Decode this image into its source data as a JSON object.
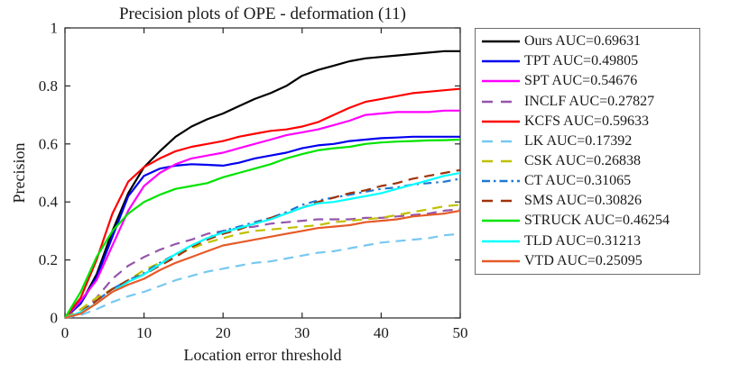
{
  "chart_data": {
    "type": "line",
    "title": "Precision plots of OPE - deformation (11)",
    "xlabel": "Location error threshold",
    "ylabel": "Precision",
    "xlim": [
      0,
      50
    ],
    "ylim": [
      0,
      1
    ],
    "x_ticks": [
      0,
      10,
      20,
      30,
      40,
      50
    ],
    "x_tick_labels": [
      "0",
      "10",
      "20",
      "30",
      "40",
      "50"
    ],
    "y_ticks": [
      0,
      0.2,
      0.4,
      0.6,
      0.8,
      1
    ],
    "y_tick_labels": [
      "0",
      "0.2",
      "0.4",
      "0.6",
      "0.8",
      "1"
    ],
    "grid": false,
    "legend_position": "outside-right",
    "axis_color": "#262626",
    "x": [
      0,
      2,
      4,
      6,
      8,
      10,
      12,
      14,
      16,
      18,
      20,
      22,
      24,
      26,
      28,
      30,
      32,
      34,
      36,
      38,
      40,
      42,
      44,
      46,
      48,
      50
    ],
    "series": [
      {
        "name": "Ours",
        "auc": 0.69631,
        "label": "Ours AUC=0.69631",
        "color": "#000000",
        "style": "solid",
        "values": [
          0,
          0.05,
          0.15,
          0.3,
          0.43,
          0.52,
          0.575,
          0.625,
          0.66,
          0.685,
          0.705,
          0.73,
          0.755,
          0.775,
          0.8,
          0.835,
          0.855,
          0.87,
          0.885,
          0.895,
          0.9,
          0.905,
          0.91,
          0.915,
          0.92,
          0.92
        ]
      },
      {
        "name": "TPT",
        "auc": 0.49805,
        "label": "TPT AUC=0.49805",
        "color": "#0000EE",
        "style": "solid",
        "values": [
          0,
          0.05,
          0.14,
          0.28,
          0.42,
          0.49,
          0.515,
          0.525,
          0.53,
          0.528,
          0.525,
          0.535,
          0.55,
          0.56,
          0.57,
          0.585,
          0.595,
          0.6,
          0.61,
          0.615,
          0.62,
          0.622,
          0.625,
          0.625,
          0.625,
          0.625
        ]
      },
      {
        "name": "SPT",
        "auc": 0.54676,
        "label": "SPT AUC=0.54676",
        "color": "#FF00FF",
        "style": "solid",
        "values": [
          0,
          0.06,
          0.13,
          0.25,
          0.37,
          0.455,
          0.5,
          0.53,
          0.55,
          0.56,
          0.57,
          0.585,
          0.6,
          0.615,
          0.63,
          0.64,
          0.65,
          0.665,
          0.68,
          0.7,
          0.705,
          0.71,
          0.71,
          0.71,
          0.715,
          0.715
        ]
      },
      {
        "name": "INCLF",
        "auc": 0.27827,
        "label": "INCLF AUC=0.27827",
        "color": "#9655AA",
        "style": "dashed",
        "values": [
          0,
          0.02,
          0.07,
          0.135,
          0.18,
          0.21,
          0.235,
          0.255,
          0.27,
          0.29,
          0.3,
          0.31,
          0.315,
          0.325,
          0.33,
          0.335,
          0.34,
          0.34,
          0.34,
          0.345,
          0.345,
          0.35,
          0.355,
          0.36,
          0.37,
          0.375
        ]
      },
      {
        "name": "KCFS",
        "auc": 0.59633,
        "label": "KCFS AUC=0.59633",
        "color": "#FF0000",
        "style": "solid",
        "values": [
          0,
          0.07,
          0.2,
          0.36,
          0.47,
          0.52,
          0.55,
          0.575,
          0.59,
          0.6,
          0.61,
          0.625,
          0.635,
          0.645,
          0.65,
          0.66,
          0.675,
          0.7,
          0.725,
          0.745,
          0.755,
          0.765,
          0.775,
          0.78,
          0.785,
          0.79
        ]
      },
      {
        "name": "LK",
        "auc": 0.17392,
        "label": "LK AUC=0.17392",
        "color": "#77C8F0",
        "style": "dashed",
        "values": [
          0,
          0.01,
          0.03,
          0.055,
          0.075,
          0.09,
          0.11,
          0.13,
          0.145,
          0.16,
          0.17,
          0.18,
          0.19,
          0.195,
          0.205,
          0.215,
          0.225,
          0.23,
          0.24,
          0.25,
          0.26,
          0.265,
          0.27,
          0.275,
          0.285,
          0.29
        ]
      },
      {
        "name": "CSK",
        "auc": 0.26838,
        "label": "CSK AUC=0.26838",
        "color": "#C0C000",
        "style": "dashed",
        "values": [
          0,
          0.03,
          0.07,
          0.1,
          0.13,
          0.165,
          0.19,
          0.215,
          0.24,
          0.26,
          0.275,
          0.29,
          0.3,
          0.305,
          0.31,
          0.315,
          0.32,
          0.33,
          0.335,
          0.34,
          0.345,
          0.355,
          0.365,
          0.375,
          0.385,
          0.39
        ]
      },
      {
        "name": "CT",
        "auc": 0.31065,
        "label": "CT AUC=0.31065",
        "color": "#1E78D2",
        "style": "dashdot",
        "values": [
          0,
          0.02,
          0.06,
          0.1,
          0.13,
          0.155,
          0.19,
          0.22,
          0.25,
          0.275,
          0.3,
          0.315,
          0.33,
          0.345,
          0.365,
          0.39,
          0.405,
          0.415,
          0.425,
          0.435,
          0.445,
          0.45,
          0.46,
          0.465,
          0.47,
          0.48
        ]
      },
      {
        "name": "SMS",
        "auc": 0.30826,
        "label": "SMS AUC=0.30826",
        "color": "#A03208",
        "style": "dashed",
        "values": [
          0,
          0.02,
          0.06,
          0.1,
          0.13,
          0.15,
          0.18,
          0.21,
          0.245,
          0.27,
          0.29,
          0.305,
          0.325,
          0.345,
          0.36,
          0.38,
          0.4,
          0.415,
          0.43,
          0.44,
          0.455,
          0.465,
          0.48,
          0.49,
          0.5,
          0.51
        ]
      },
      {
        "name": "STRUCK",
        "auc": 0.46254,
        "label": "STRUCK AUC=0.46254",
        "color": "#00E400",
        "style": "solid",
        "values": [
          0,
          0.09,
          0.21,
          0.3,
          0.36,
          0.4,
          0.425,
          0.445,
          0.455,
          0.465,
          0.485,
          0.5,
          0.515,
          0.53,
          0.55,
          0.565,
          0.578,
          0.585,
          0.59,
          0.6,
          0.605,
          0.608,
          0.61,
          0.612,
          0.613,
          0.615
        ]
      },
      {
        "name": "TLD",
        "auc": 0.31213,
        "label": "TLD AUC=0.31213",
        "color": "#00FFFF",
        "style": "solid",
        "values": [
          0,
          0.02,
          0.05,
          0.09,
          0.125,
          0.15,
          0.185,
          0.22,
          0.25,
          0.275,
          0.295,
          0.31,
          0.325,
          0.34,
          0.36,
          0.38,
          0.395,
          0.4,
          0.41,
          0.42,
          0.43,
          0.445,
          0.46,
          0.475,
          0.49,
          0.5
        ]
      },
      {
        "name": "VTD",
        "auc": 0.25095,
        "label": "VTD AUC=0.25095",
        "color": "#E65A28",
        "style": "solid",
        "values": [
          0,
          0.015,
          0.05,
          0.09,
          0.115,
          0.135,
          0.165,
          0.19,
          0.21,
          0.23,
          0.25,
          0.26,
          0.27,
          0.28,
          0.29,
          0.3,
          0.31,
          0.315,
          0.32,
          0.33,
          0.335,
          0.34,
          0.35,
          0.355,
          0.36,
          0.37
        ]
      }
    ]
  }
}
